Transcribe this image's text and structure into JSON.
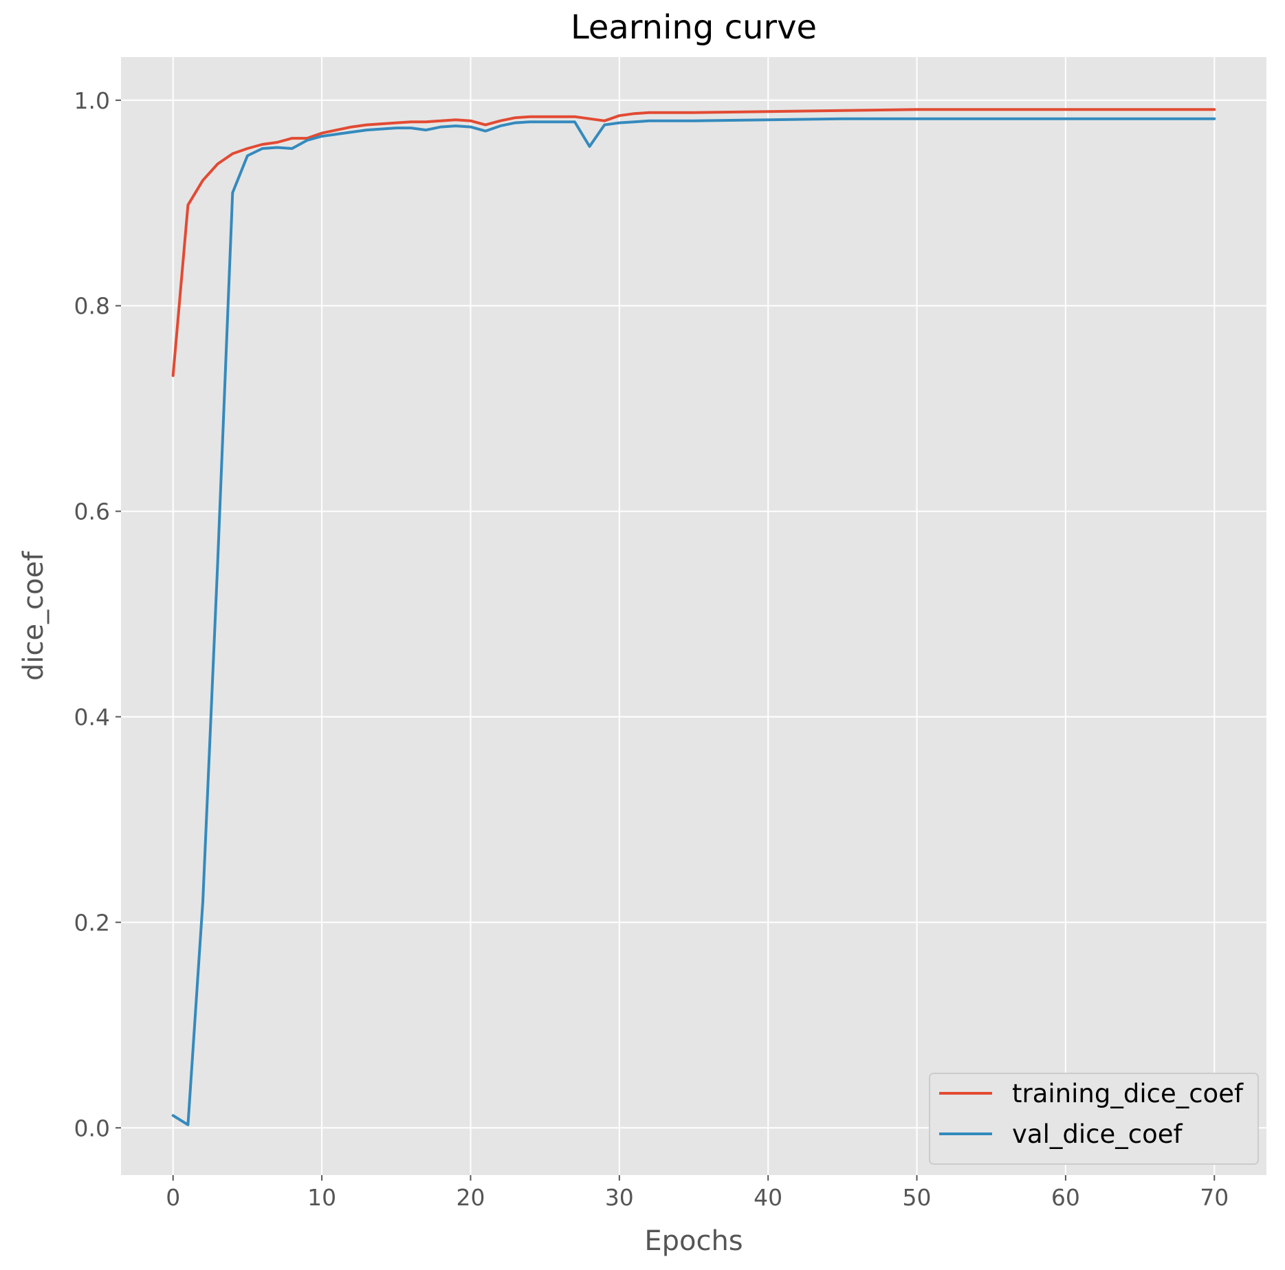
{
  "chart_data": {
    "type": "line",
    "title": "Learning curve",
    "xlabel": "Epochs",
    "ylabel": "dice_coef",
    "xlim": [
      -3.5,
      73.5
    ],
    "ylim": [
      -0.046,
      1.042
    ],
    "xticks": [
      0,
      10,
      20,
      30,
      40,
      50,
      60,
      70
    ],
    "yticks": [
      0.0,
      0.2,
      0.4,
      0.6,
      0.8,
      1.0
    ],
    "ytick_labels": [
      "0.0",
      "0.2",
      "0.4",
      "0.6",
      "0.8",
      "1.0"
    ],
    "grid": true,
    "legend_position": "lower-right",
    "style": {
      "background": "#e5e5e5",
      "grid_color": "#ffffff"
    },
    "series": [
      {
        "name": "training_dice_coef",
        "color": "#e24a33",
        "x": [
          0,
          1,
          2,
          3,
          4,
          5,
          6,
          7,
          8,
          9,
          10,
          11,
          12,
          13,
          14,
          15,
          16,
          17,
          18,
          19,
          20,
          21,
          22,
          23,
          24,
          25,
          26,
          27,
          28,
          29,
          30,
          31,
          32,
          35,
          40,
          45,
          50,
          55,
          60,
          65,
          70
        ],
        "values": [
          0.732,
          0.898,
          0.922,
          0.938,
          0.948,
          0.953,
          0.957,
          0.959,
          0.963,
          0.963,
          0.968,
          0.971,
          0.974,
          0.976,
          0.977,
          0.978,
          0.979,
          0.979,
          0.98,
          0.981,
          0.98,
          0.976,
          0.98,
          0.983,
          0.984,
          0.984,
          0.984,
          0.984,
          0.982,
          0.98,
          0.985,
          0.987,
          0.988,
          0.988,
          0.989,
          0.99,
          0.991,
          0.991,
          0.991,
          0.991,
          0.991
        ]
      },
      {
        "name": "val_dice_coef",
        "color": "#348abd",
        "x": [
          0,
          1,
          2,
          3,
          4,
          5,
          6,
          7,
          8,
          9,
          10,
          11,
          12,
          13,
          14,
          15,
          16,
          17,
          18,
          19,
          20,
          21,
          22,
          23,
          24,
          25,
          26,
          27,
          28,
          29,
          30,
          31,
          32,
          35,
          40,
          45,
          50,
          55,
          60,
          65,
          70
        ],
        "values": [
          0.012,
          0.003,
          0.22,
          0.55,
          0.91,
          0.946,
          0.953,
          0.954,
          0.953,
          0.961,
          0.965,
          0.967,
          0.969,
          0.971,
          0.972,
          0.973,
          0.973,
          0.971,
          0.974,
          0.975,
          0.974,
          0.97,
          0.975,
          0.978,
          0.979,
          0.979,
          0.979,
          0.979,
          0.955,
          0.976,
          0.978,
          0.979,
          0.98,
          0.98,
          0.981,
          0.982,
          0.982,
          0.982,
          0.982,
          0.982,
          0.982
        ]
      }
    ]
  }
}
